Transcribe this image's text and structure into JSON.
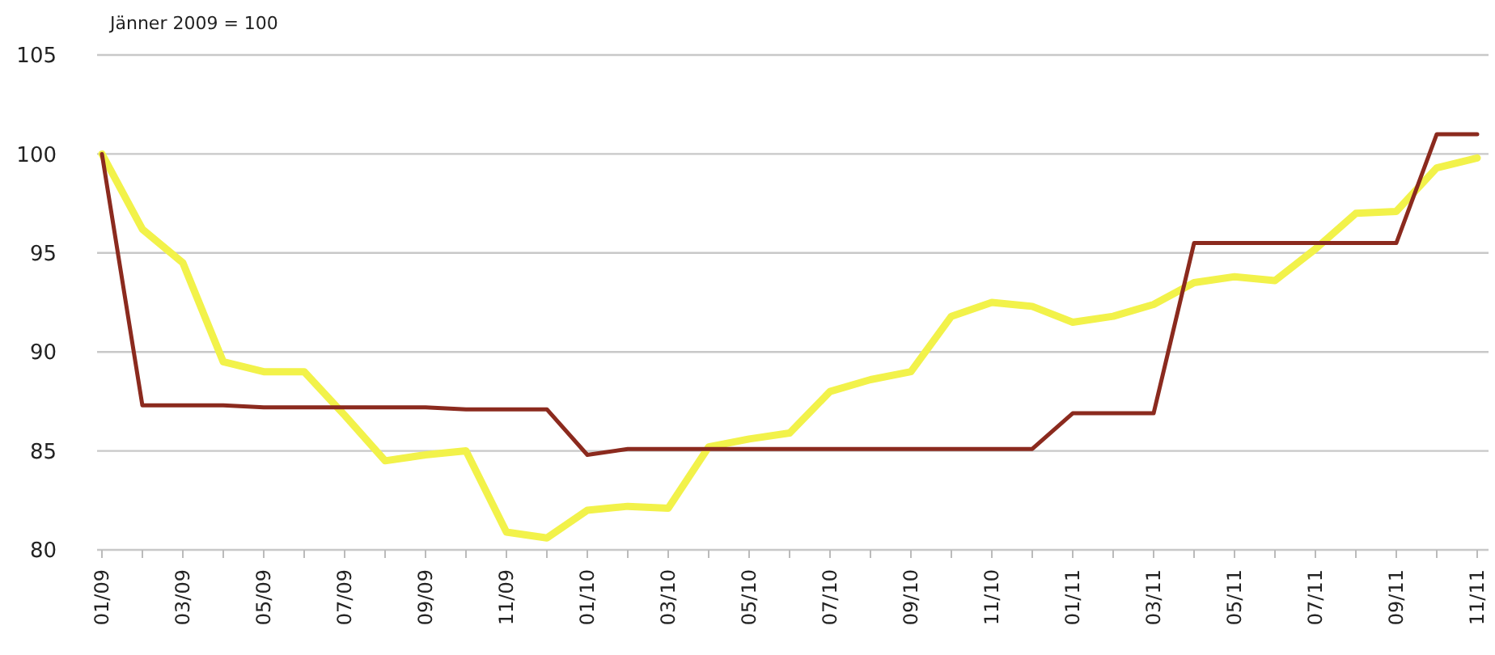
{
  "chart_data": {
    "type": "line",
    "annotations": [
      "Jänner 2009 = 100"
    ],
    "categories": [
      "01/09",
      null,
      "03/09",
      null,
      "05/09",
      null,
      "07/09",
      null,
      "09/09",
      null,
      "11/09",
      null,
      "01/10",
      null,
      "03/10",
      null,
      "05/10",
      null,
      "07/10",
      null,
      "09/10",
      null,
      "11/10",
      null,
      "01/11",
      null,
      "03/11",
      null,
      "05/11",
      null,
      "07/11",
      null,
      "09/11",
      null,
      "11/11"
    ],
    "series": [
      {
        "color": "#8b2a1e",
        "values": [
          100,
          87.3,
          87.3,
          87.3,
          87.2,
          87.2,
          87.2,
          87.2,
          87.2,
          87.1,
          87.1,
          87.1,
          84.8,
          85.1,
          85.1,
          85.1,
          85.1,
          85.1,
          85.1,
          85.1,
          85.1,
          85.1,
          85.1,
          85.1,
          86.9,
          86.9,
          86.9,
          95.5,
          95.5,
          95.5,
          95.5,
          95.5,
          95.5,
          101,
          101
        ]
      },
      {
        "color": "#f2f24a",
        "values": [
          100,
          96.2,
          94.5,
          89.5,
          89,
          89,
          86.8,
          84.5,
          84.8,
          85,
          80.9,
          80.6,
          82,
          82.2,
          82.1,
          85.2,
          85.6,
          85.9,
          88,
          88.6,
          89,
          91.8,
          92.5,
          92.3,
          91.5,
          91.8,
          92.4,
          93.5,
          93.8,
          93.6,
          95.2,
          97,
          97.1,
          99.3,
          99.8
        ]
      }
    ],
    "ylim": [
      80,
      105
    ],
    "yticks": [
      80,
      85,
      90,
      95,
      100,
      105
    ],
    "grid": "y",
    "line_style": "solid",
    "marker": "none"
  }
}
